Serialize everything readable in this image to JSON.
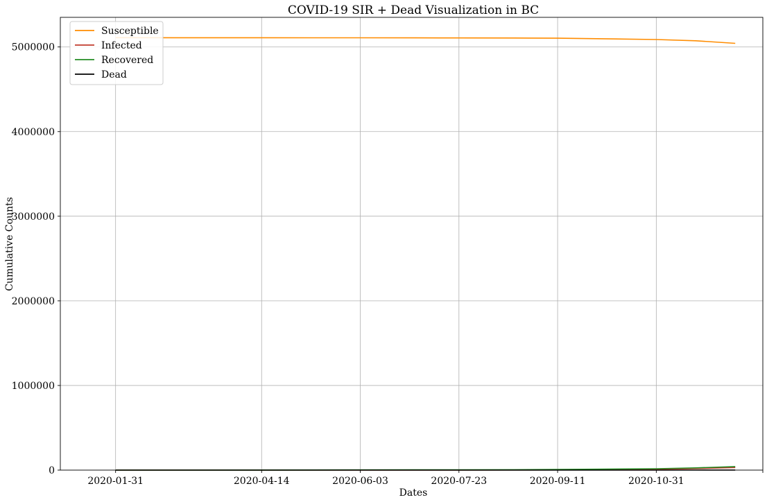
{
  "chart_data": {
    "type": "line",
    "title": "COVID-19 SIR + Dead Visualization in BC",
    "xlabel": "Dates",
    "ylabel": "Cumulative Counts",
    "ylim": [
      0,
      5350000
    ],
    "xlim": [
      "2020-01-03",
      "2020-12-24"
    ],
    "x_ticks": [
      "2020-01-31",
      "2020-04-14",
      "2020-06-03",
      "2020-07-23",
      "2020-09-11",
      "2020-10-31",
      ""
    ],
    "y_ticks": [
      0,
      1000000,
      2000000,
      3000000,
      4000000,
      5000000
    ],
    "y_tick_labels": [
      "0",
      "1000000",
      "2000000",
      "3000000",
      "4000000",
      "5000000"
    ],
    "grid": true,
    "legend_position": "top-left",
    "x": [
      "2020-01-31",
      "2020-03-01",
      "2020-04-14",
      "2020-05-10",
      "2020-06-03",
      "2020-07-01",
      "2020-07-23",
      "2020-08-20",
      "2020-09-11",
      "2020-10-01",
      "2020-10-31",
      "2020-11-20",
      "2020-12-10"
    ],
    "series": [
      {
        "name": "Susceptible",
        "color": "#ff8c00",
        "values": [
          5110000,
          5109500,
          5109000,
          5108500,
          5108000,
          5107500,
          5107000,
          5106000,
          5103000,
          5098000,
          5088000,
          5073000,
          5043000
        ]
      },
      {
        "name": "Infected",
        "color": "#c0392b",
        "values": [
          0,
          100,
          300,
          400,
          500,
          700,
          1000,
          1500,
          2500,
          4000,
          9000,
          18000,
          30000
        ]
      },
      {
        "name": "Recovered",
        "color": "#228b22",
        "values": [
          0,
          200,
          1000,
          1800,
          2400,
          3000,
          3500,
          5000,
          7500,
          11000,
          16000,
          26000,
          42000
        ]
      },
      {
        "name": "Dead",
        "color": "#000000",
        "values": [
          0,
          5,
          50,
          100,
          160,
          180,
          190,
          200,
          220,
          240,
          270,
          360,
          500
        ]
      }
    ]
  }
}
